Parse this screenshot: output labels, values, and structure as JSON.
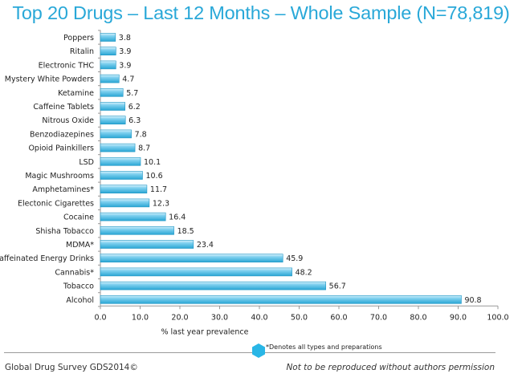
{
  "chart_data": {
    "type": "bar",
    "orientation": "horizontal",
    "title": "Top 20 Drugs – Last 12 Months – Whole Sample (N=78,819)",
    "xlabel": "% last year prevalence",
    "ylabel": "",
    "xlim": [
      0,
      100
    ],
    "ticks": [
      "0.0",
      "10.0",
      "20.0",
      "30.0",
      "40.0",
      "50.0",
      "60.0",
      "70.0",
      "80.0",
      "90.0",
      "100.0"
    ],
    "categories": [
      "Poppers",
      "Ritalin",
      "Electronic THC",
      "Mystery White Powders",
      "Ketamine",
      "Caffeine Tablets",
      "Nitrous Oxide",
      "Benzodiazepines",
      "Opioid Painkillers",
      "LSD",
      "Magic Mushrooms",
      "Amphetamines*",
      "Electonic Cigarettes",
      "Cocaine",
      "Shisha Tobacco",
      "MDMA*",
      "Caffeinated Energy Drinks",
      "Cannabis*",
      "Tobacco",
      "Alcohol"
    ],
    "values": [
      3.8,
      3.9,
      3.9,
      4.7,
      5.7,
      6.2,
      6.3,
      7.8,
      8.7,
      10.1,
      10.6,
      11.7,
      12.3,
      16.4,
      18.5,
      23.4,
      45.9,
      48.2,
      56.7,
      90.8
    ],
    "value_labels": [
      "3.8",
      "3.9",
      "3.9",
      "4.7",
      "5.7",
      "6.2",
      "6.3",
      "7.8",
      "8.7",
      "10.1",
      "10.6",
      "11.7",
      "12.3",
      "16.4",
      "18.5",
      "23.4",
      "45.9",
      "48.2",
      "56.7",
      "90.8"
    ],
    "grid": false,
    "legend": "none",
    "bar_color": "#5fc3e8"
  },
  "footer": {
    "note": "*Denotes all types and preparations",
    "credit": "Global Drug Survey GDS2014©",
    "rights": "Not to be reproduced without authors permission"
  },
  "colors": {
    "title": "#29a8d8",
    "accent": "#29b6e6"
  }
}
